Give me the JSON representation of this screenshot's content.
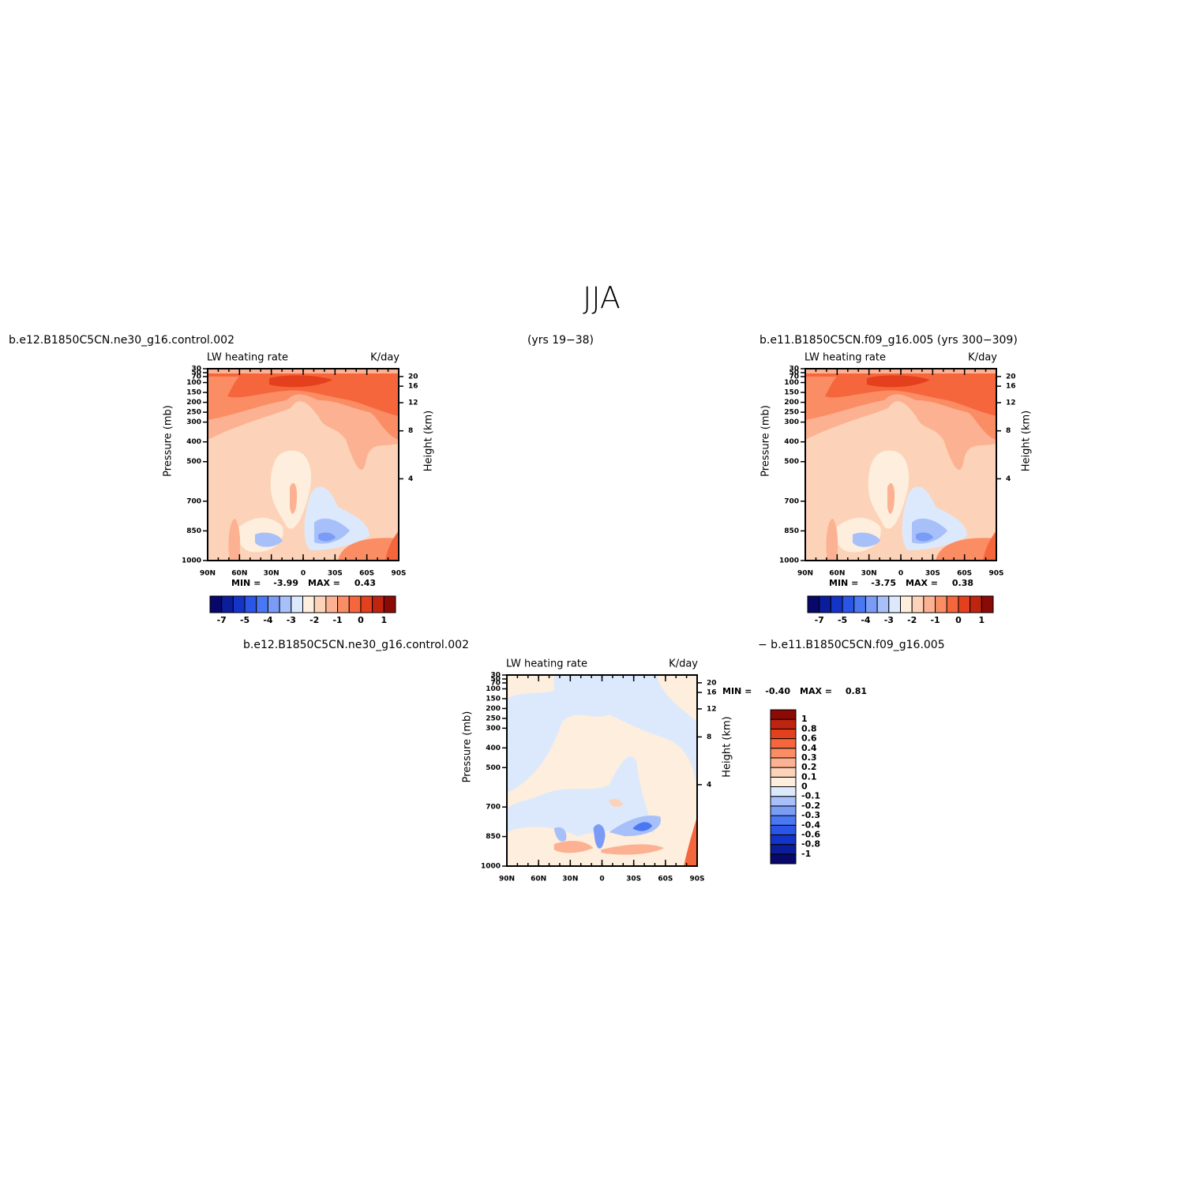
{
  "title": "JJA",
  "chart_data": [
    {
      "type": "contour",
      "left_string": "b.e12.B1850C5CN.ne30_g16.control.002",
      "right_string": "(yrs 19−38)",
      "title": "LW heating rate",
      "units": "K/day",
      "ylabel": "Pressure (mb)",
      "y2label": "Height (km)",
      "xlim": [
        90,
        -90
      ],
      "xticks": [
        {
          "value": 90,
          "label": "90N"
        },
        {
          "value": 60,
          "label": "60N"
        },
        {
          "value": 30,
          "label": "30N"
        },
        0,
        {
          "value": -30,
          "label": "30S"
        },
        {
          "value": -60,
          "label": "60S"
        },
        {
          "value": -90,
          "label": "90S"
        }
      ],
      "ylim": [
        1000,
        30
      ],
      "yticks": [
        30,
        50,
        70,
        100,
        150,
        200,
        250,
        300,
        400,
        500,
        700,
        850,
        1000
      ],
      "y2ticks": [
        4,
        8,
        12,
        16,
        20
      ],
      "min_label": "MIN =",
      "min": -3.99,
      "max_label": "MAX =",
      "max": 0.43,
      "colorbar": {
        "colors": [
          "#08086b",
          "#0b1d9a",
          "#1433c7",
          "#2a55e6",
          "#4a78f2",
          "#7a9cf6",
          "#a7c0f9",
          "#dce9fd",
          "#fdeedd",
          "#fcd3b8",
          "#fcb292",
          "#fb8d65",
          "#f6663c",
          "#e4401d",
          "#bf2411",
          "#8b0a06"
        ],
        "labels": [
          -7,
          -5,
          -4,
          -3,
          -2,
          -1,
          0,
          1
        ]
      }
    },
    {
      "type": "contour",
      "left_string": "b.e11.B1850C5CN.f09_g16.005 (yrs 300−309)",
      "title": "LW heating rate",
      "units": "K/day",
      "ylabel": "Pressure (mb)",
      "y2label": "Height (km)",
      "xlim": [
        90,
        -90
      ],
      "xticks": [
        {
          "value": 90,
          "label": "90N"
        },
        {
          "value": 60,
          "label": "60N"
        },
        {
          "value": 30,
          "label": "30N"
        },
        0,
        {
          "value": -30,
          "label": "30S"
        },
        {
          "value": -60,
          "label": "60S"
        },
        {
          "value": -90,
          "label": "90S"
        }
      ],
      "ylim": [
        1000,
        30
      ],
      "yticks": [
        30,
        50,
        70,
        100,
        150,
        200,
        250,
        300,
        400,
        500,
        700,
        850,
        1000
      ],
      "y2ticks": [
        4,
        8,
        12,
        16,
        20
      ],
      "min_label": "MIN =",
      "min": -3.75,
      "max_label": "MAX =",
      "max": 0.38,
      "colorbar": {
        "colors": [
          "#08086b",
          "#0b1d9a",
          "#1433c7",
          "#2a55e6",
          "#4a78f2",
          "#7a9cf6",
          "#a7c0f9",
          "#dce9fd",
          "#fdeedd",
          "#fcd3b8",
          "#fcb292",
          "#fb8d65",
          "#f6663c",
          "#e4401d",
          "#bf2411",
          "#8b0a06"
        ],
        "labels": [
          -7,
          -5,
          -4,
          -3,
          -2,
          -1,
          0,
          1
        ]
      }
    },
    {
      "type": "contour",
      "left_string": "b.e12.B1850C5CN.ne30_g16.control.002",
      "right_string": "− b.e11.B1850C5CN.f09_g16.005",
      "title": "LW heating rate",
      "units": "K/day",
      "ylabel": "Pressure (mb)",
      "y2label": "Height (km)",
      "xlim": [
        90,
        -90
      ],
      "xticks": [
        {
          "value": 90,
          "label": "90N"
        },
        {
          "value": 60,
          "label": "60N"
        },
        {
          "value": 30,
          "label": "30N"
        },
        0,
        {
          "value": -30,
          "label": "30S"
        },
        {
          "value": -60,
          "label": "60S"
        },
        {
          "value": -90,
          "label": "90S"
        }
      ],
      "ylim": [
        1000,
        30
      ],
      "yticks": [
        30,
        50,
        70,
        100,
        150,
        200,
        250,
        300,
        400,
        500,
        700,
        850,
        1000
      ],
      "y2ticks": [
        4,
        8,
        12,
        16,
        20
      ],
      "min_label": "MIN =",
      "min": {
        "value": -0.4,
        "label": "-0.40"
      },
      "max_label": "MAX =",
      "max": 0.81,
      "colorbar": {
        "colors": [
          "#08086b",
          "#0b1d9a",
          "#1433c7",
          "#2a55e6",
          "#4a78f2",
          "#7a9cf6",
          "#a7c0f9",
          "#dce9fd",
          "#fdeedd",
          "#fcd3b8",
          "#fcb292",
          "#fb8d65",
          "#f6663c",
          "#e4401d",
          "#bf2411",
          "#8b0a06"
        ],
        "labels": [
          1,
          0.8,
          0.6,
          0.4,
          0.3,
          0.2,
          0.1,
          0,
          -0.1,
          -0.2,
          -0.3,
          -0.4,
          -0.6,
          -0.8,
          -1
        ]
      }
    }
  ]
}
